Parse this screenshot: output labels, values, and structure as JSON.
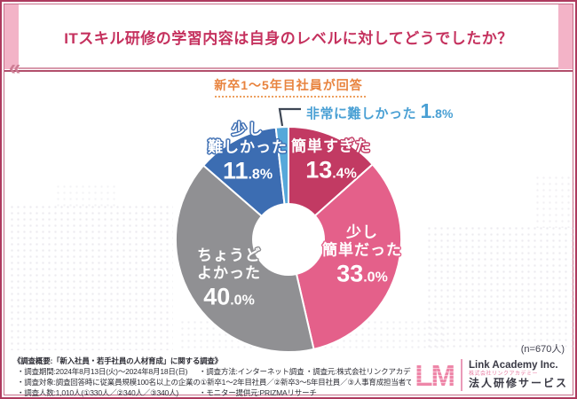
{
  "header": {
    "title": "ITスキル研修の学習内容は自身のレベルに対してどうでしたか？",
    "badge": "新卒1〜5年目社員が回答",
    "chevron": "«"
  },
  "chart_data": {
    "type": "donut",
    "title": "ITスキル研修の学習内容は自身のレベルに対してどうでしたか？",
    "unit": "%",
    "start_angle_deg": 0,
    "direction": "clockwise",
    "n_label": "(n=670人)",
    "segments": [
      {
        "label": "簡単すぎた",
        "line1": "簡単すぎた",
        "value": 13.4,
        "pct_main": "13",
        "pct_frac": ".4%",
        "color": "#c23a63"
      },
      {
        "label": "少し簡単だった",
        "line1": "少し",
        "line2": "簡単だった",
        "value": 33.0,
        "pct_main": "33",
        "pct_frac": ".0%",
        "color": "#e4608a"
      },
      {
        "label": "ちょうどよかった",
        "line1": "ちょうど",
        "line2": "よかった",
        "value": 40.0,
        "pct_main": "40",
        "pct_frac": ".0%",
        "color": "#909093"
      },
      {
        "label": "少し難しかった",
        "line1": "少し",
        "line2": "難しかった",
        "value": 11.8,
        "pct_main": "11",
        "pct_frac": ".8%",
        "color": "#3c6db2"
      },
      {
        "label": "非常に難しかった",
        "line1": "非常に難しかった",
        "value": 1.8,
        "pct_main": "1",
        "pct_frac": ".8%",
        "color": "#56a8da"
      }
    ],
    "callout": {
      "label": "非常に難しかった",
      "pct_main": "1",
      "pct_frac": ".8%",
      "text_color": "#4aa0d4"
    }
  },
  "footer": {
    "overview": "《調査概要:「新入社員・若手社員の人材育成」に関する調査》",
    "period": "・調査期間:2024年8月13日(火)〜2024年8月18日(日)",
    "method": "・調査方法:インターネット調査",
    "source": "・調査元:株式会社リンクアカデミー",
    "target": "・調査対象:調査回答時に従業員規模100名以上の企業の①新卒1〜2年目社員／②新卒3〜5年目社員／③人事育成担当者であると回答したモニター",
    "count": "・調査人数:1,010人(①330人／②340人／③340人)",
    "monitor": "・モニター提供元:PRIZMAリサーチ"
  },
  "logo": {
    "mark": "LM",
    "company": "Link Academy Inc.",
    "company_jp": "株式会社リンクアカデミー",
    "service": "法人研修サービス"
  },
  "colors": {
    "border": "#ad3a5e",
    "title": "#c5315e",
    "corner_strip": "#f3b3c7",
    "badge_orange": "#e8833e",
    "callout_line": "#3d4654",
    "footer_text": "#2e2e36",
    "logo_pink": "#ee86a8"
  }
}
